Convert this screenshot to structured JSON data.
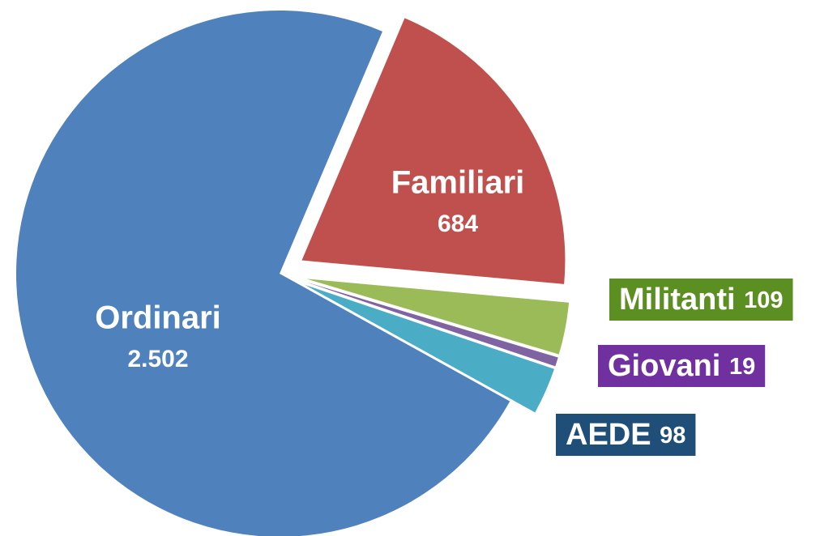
{
  "chart_data": {
    "type": "pie",
    "categories": [
      "Familiari",
      "Militanti",
      "Giovani",
      "AEDE",
      "Ordinari"
    ],
    "values": [
      684,
      109,
      19,
      98,
      2502
    ],
    "value_labels": [
      "684",
      "109",
      "19",
      "98",
      "2.502"
    ],
    "colors": [
      "#c0504d",
      "#9bbb59",
      "#8064a2",
      "#4bacc6",
      "#4f81bd"
    ]
  }
}
